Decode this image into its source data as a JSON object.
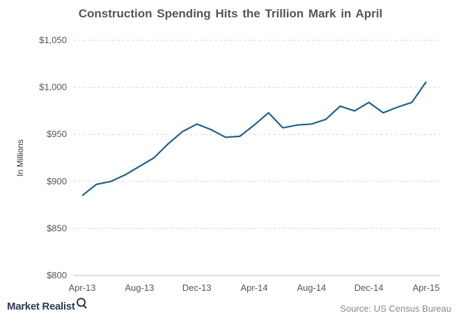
{
  "chart_data": {
    "type": "line",
    "title": "Construction Spending Hits the Trillion Mark in April",
    "ylabel": "In Millions",
    "xlabel": "",
    "ylim": [
      800,
      1050
    ],
    "yticks": [
      "$800",
      "$850",
      "$900",
      "$950",
      "$1,000",
      "$1,050"
    ],
    "ytick_values": [
      800,
      850,
      900,
      950,
      1000,
      1050
    ],
    "xtick_labels": [
      "Apr-13",
      "Aug-13",
      "Dec-13",
      "Apr-14",
      "Aug-14",
      "Dec-14",
      "Apr-15"
    ],
    "x": [
      "Apr-13",
      "May-13",
      "Jun-13",
      "Jul-13",
      "Aug-13",
      "Sep-13",
      "Oct-13",
      "Nov-13",
      "Dec-13",
      "Jan-14",
      "Feb-14",
      "Mar-14",
      "Apr-14",
      "May-14",
      "Jun-14",
      "Jul-14",
      "Aug-14",
      "Sep-14",
      "Oct-14",
      "Nov-14",
      "Dec-14",
      "Jan-15",
      "Feb-15",
      "Mar-15",
      "Apr-15"
    ],
    "series": [
      {
        "values": [
          885,
          897,
          900,
          907,
          916,
          925,
          940,
          953,
          961,
          955,
          947,
          948,
          960,
          973,
          957,
          960,
          961,
          966,
          980,
          975,
          984,
          973,
          979,
          984,
          1006
        ]
      }
    ],
    "grid": true,
    "line_color": "#1f5f8b"
  },
  "footer": {
    "brand": "Market Realist",
    "source": "Source: US Census Bureau"
  }
}
